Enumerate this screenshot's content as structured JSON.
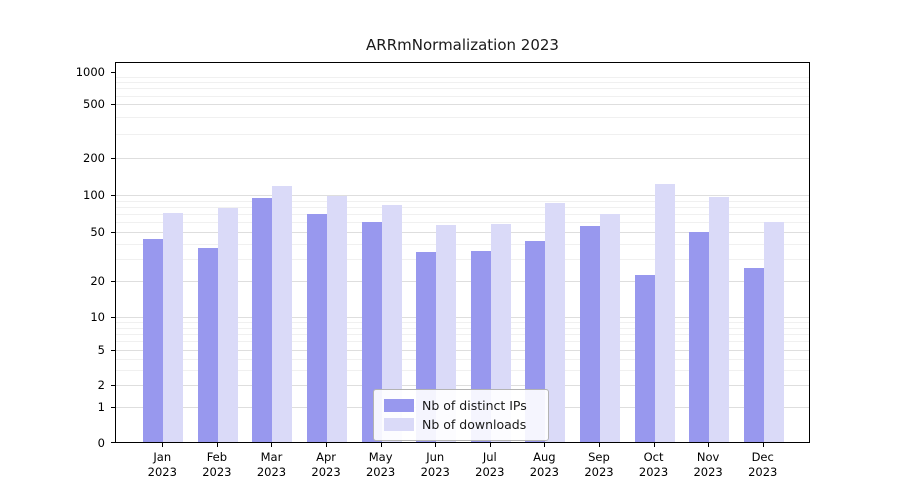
{
  "chart_data": {
    "type": "bar",
    "title": "ARRmNormalization 2023",
    "year_label": "2023",
    "categories": [
      "Jan",
      "Feb",
      "Mar",
      "Apr",
      "May",
      "Jun",
      "Jul",
      "Aug",
      "Sep",
      "Oct",
      "Nov",
      "Dec"
    ],
    "series": [
      {
        "name": "Nb of distinct IPs",
        "color": "#9898ee",
        "values": [
          45,
          38,
          97,
          72,
          62,
          35,
          36,
          43,
          57,
          23,
          51,
          26
        ]
      },
      {
        "name": "Nb of downloads",
        "color": "#dadaf8",
        "values": [
          73,
          80,
          120,
          100,
          84,
          58,
          59,
          87,
          72,
          125,
          98,
          61
        ]
      }
    ],
    "yticks": [
      0,
      1,
      2,
      5,
      10,
      20,
      50,
      100,
      200,
      500,
      1000
    ],
    "minor_gridline_values": [
      3,
      4,
      6,
      7,
      8,
      9,
      30,
      40,
      60,
      70,
      80,
      90,
      300,
      400,
      600,
      700,
      800,
      900
    ],
    "yscale": "symlog",
    "xlabel": "",
    "ylabel": "",
    "legend_position": "lower center inside",
    "grid": "horizontal"
  }
}
